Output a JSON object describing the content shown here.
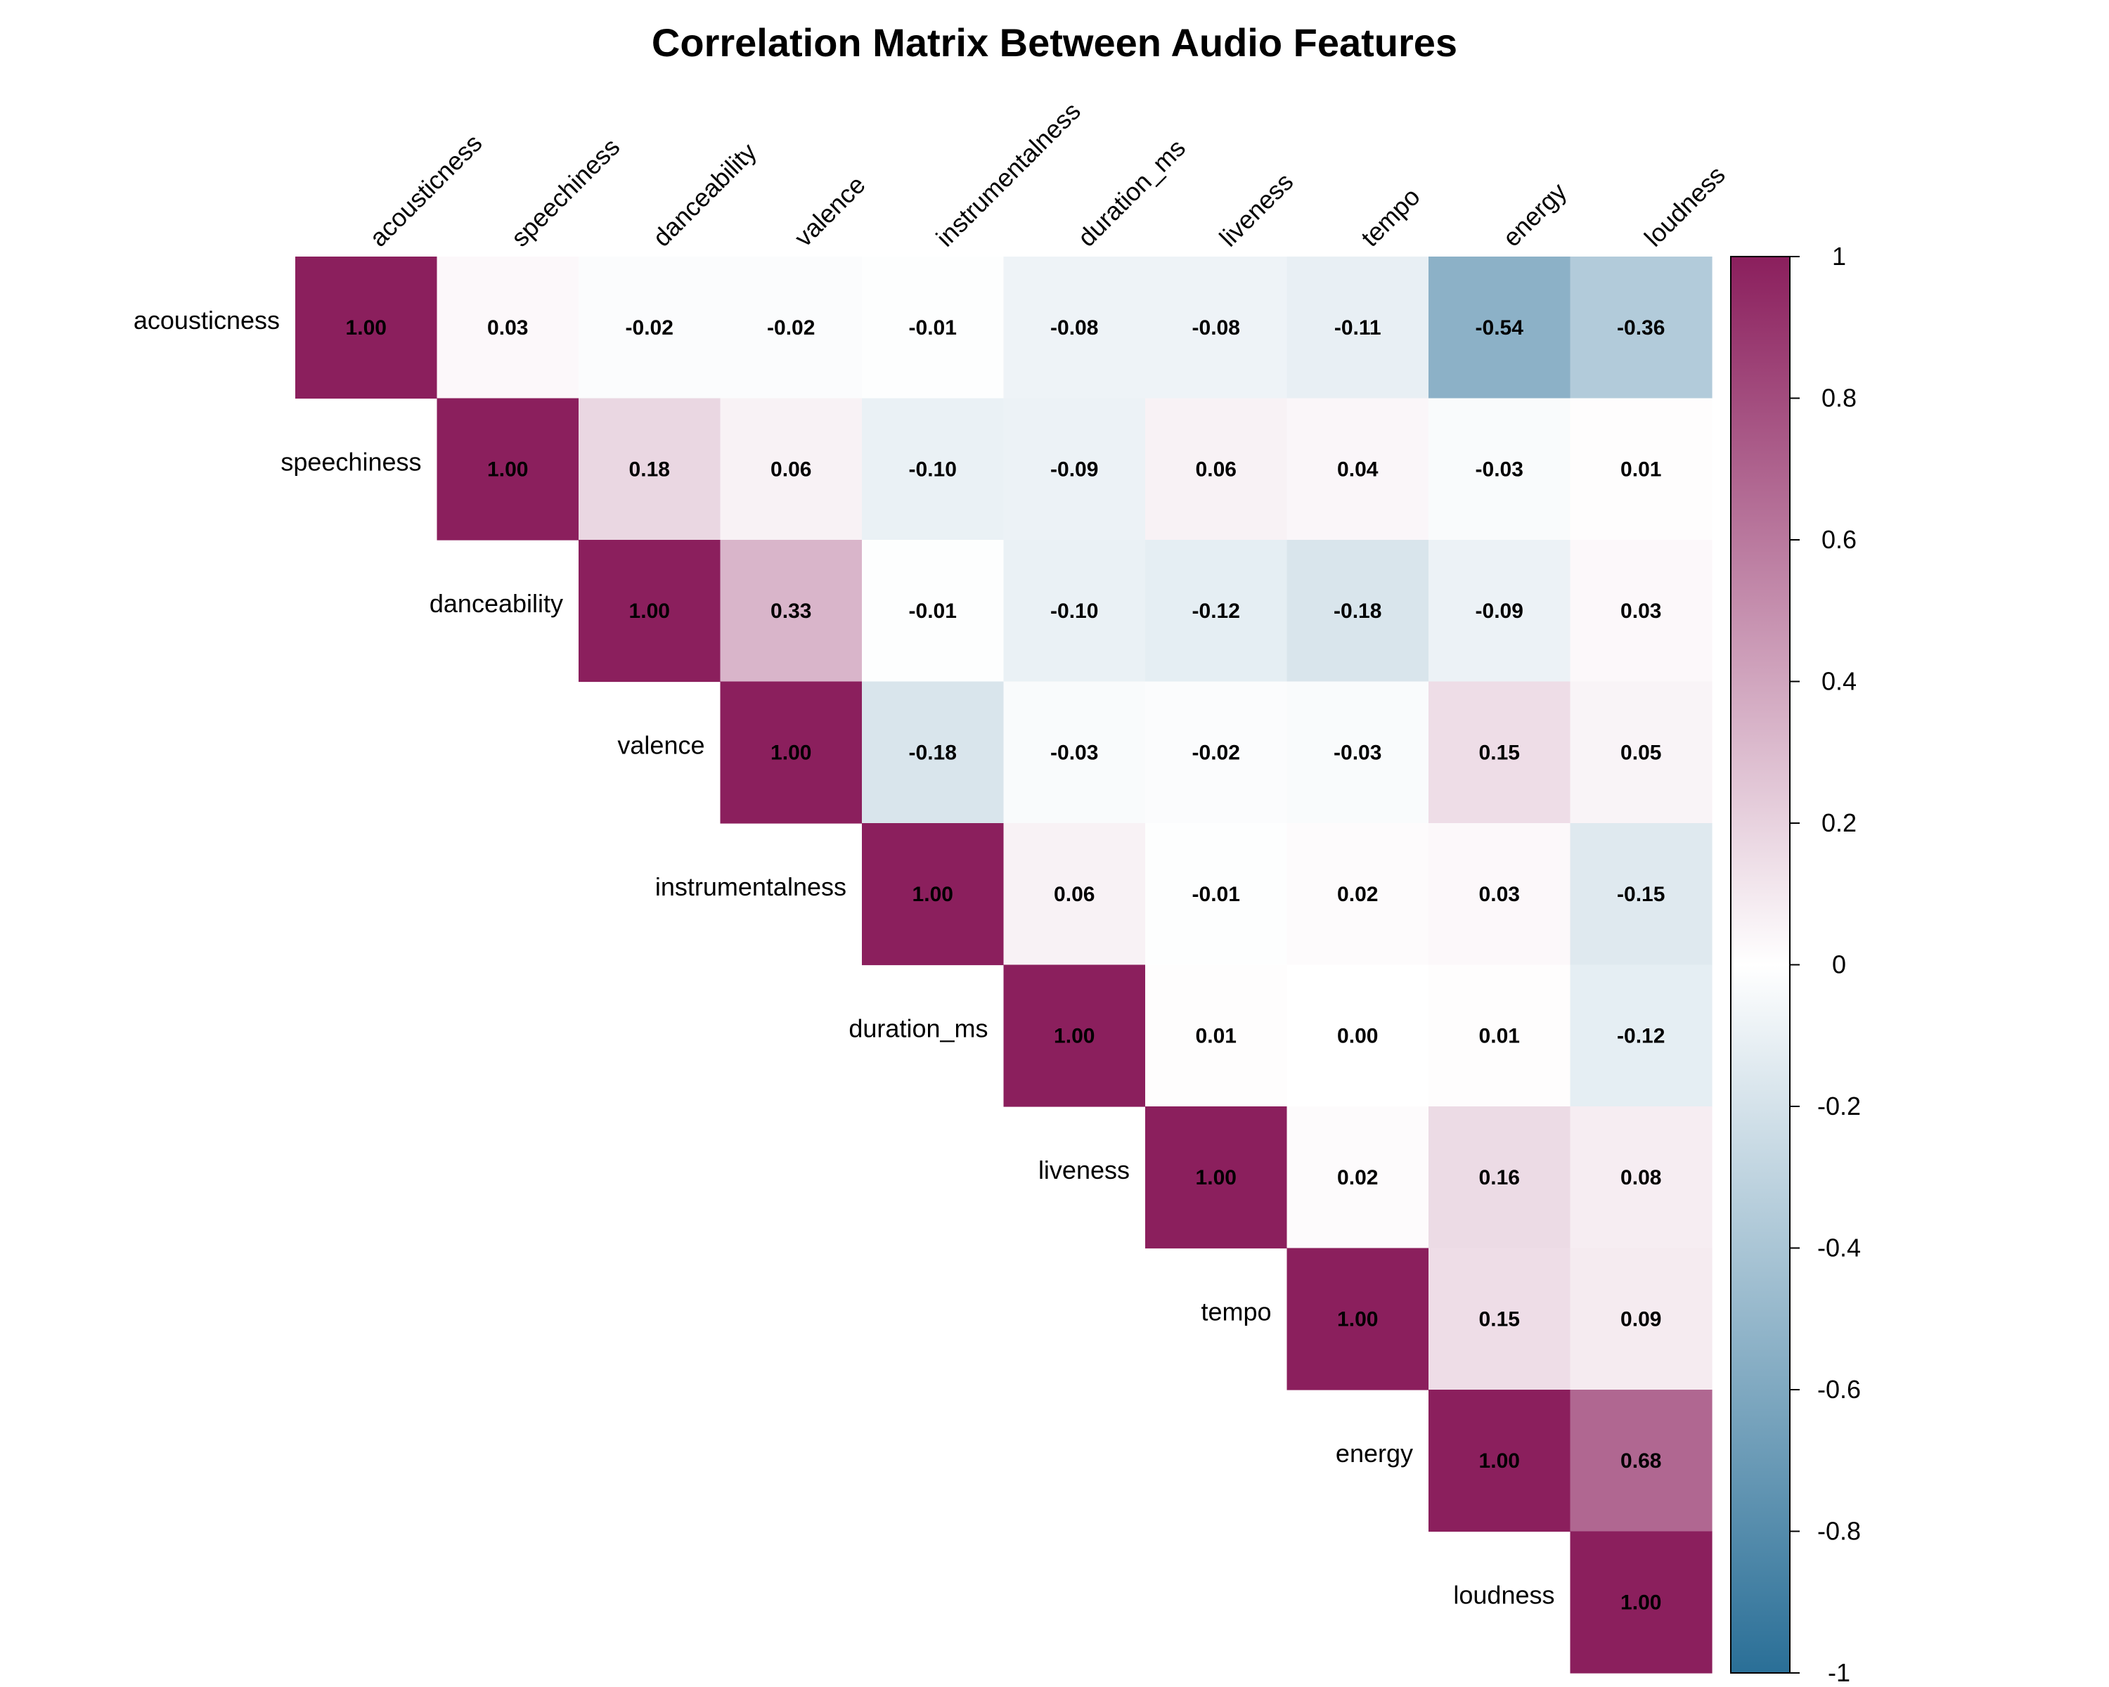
{
  "chart_data": {
    "type": "heatmap",
    "title": "Correlation Matrix Between Audio Features",
    "variables": [
      "acousticness",
      "speechiness",
      "danceability",
      "valence",
      "instrumentalness",
      "duration_ms",
      "liveness",
      "tempo",
      "energy",
      "loudness"
    ],
    "layout": "upper-triangle",
    "matrix": [
      [
        1.0,
        0.03,
        -0.02,
        -0.02,
        -0.01,
        -0.08,
        -0.08,
        -0.11,
        -0.54,
        -0.36
      ],
      [
        null,
        1.0,
        0.18,
        0.06,
        -0.1,
        -0.09,
        0.06,
        0.04,
        -0.03,
        0.01
      ],
      [
        null,
        null,
        1.0,
        0.33,
        -0.01,
        -0.1,
        -0.12,
        -0.18,
        -0.09,
        0.03
      ],
      [
        null,
        null,
        null,
        1.0,
        -0.18,
        -0.03,
        -0.02,
        -0.03,
        0.15,
        0.05
      ],
      [
        null,
        null,
        null,
        null,
        1.0,
        0.06,
        -0.01,
        0.02,
        0.03,
        -0.15
      ],
      [
        null,
        null,
        null,
        null,
        null,
        1.0,
        0.01,
        0.0,
        0.01,
        -0.12
      ],
      [
        null,
        null,
        null,
        null,
        null,
        null,
        1.0,
        0.02,
        0.16,
        0.08
      ],
      [
        null,
        null,
        null,
        null,
        null,
        null,
        null,
        1.0,
        0.15,
        0.09
      ],
      [
        null,
        null,
        null,
        null,
        null,
        null,
        null,
        null,
        1.0,
        0.68
      ],
      [
        null,
        null,
        null,
        null,
        null,
        null,
        null,
        null,
        null,
        1.0
      ]
    ],
    "value_format": "0.00",
    "colorbar": {
      "range": [
        -1,
        1
      ],
      "ticks": [
        "1",
        "0.8",
        "0.6",
        "0.4",
        "0.2",
        "0",
        "-0.2",
        "-0.4",
        "-0.6",
        "-0.8",
        "-1"
      ],
      "color_low": "#2a6f97",
      "color_mid": "#ffffff",
      "color_high": "#8b1f5d"
    }
  }
}
